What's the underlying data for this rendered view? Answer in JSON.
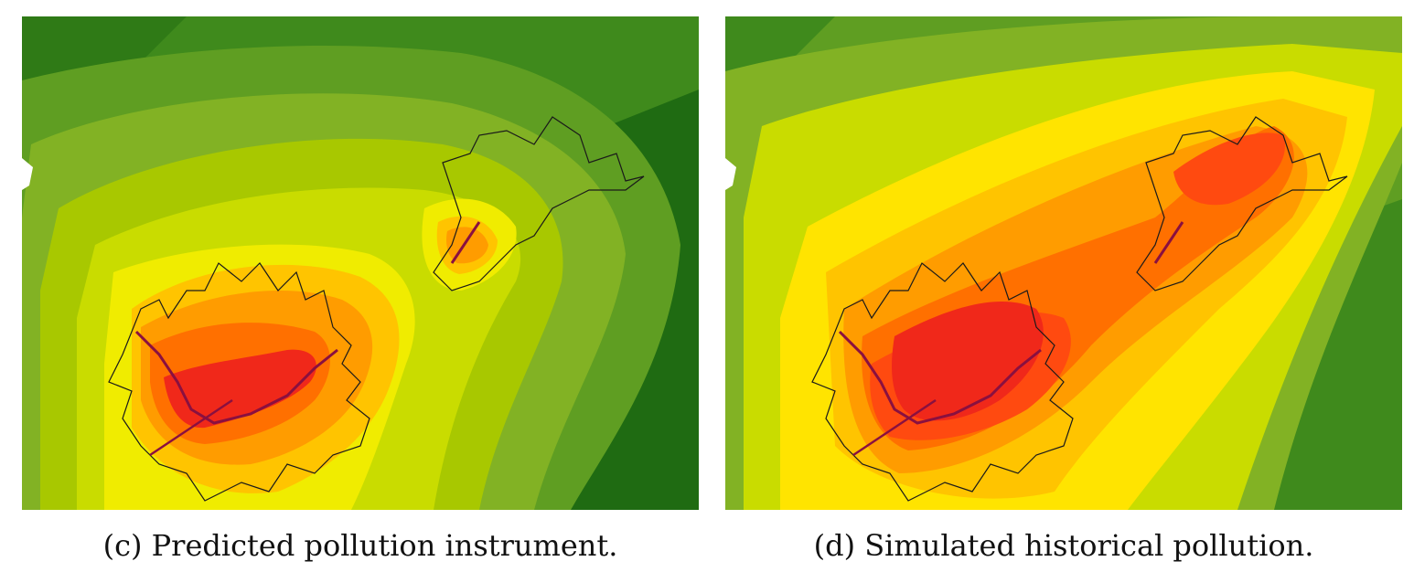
{
  "figures": [
    {
      "label": "(c)",
      "caption": "Predicted pollution instrument."
    },
    {
      "label": "(d)",
      "caption": "Simulated historical pollution."
    }
  ],
  "colors": {
    "darkest_green": "#1f6b12",
    "dark_green": "#3f8a1c",
    "green": "#5f9e22",
    "olive_green": "#82b224",
    "yellow_green": "#a8c800",
    "lime": "#c9dc00",
    "yellow": "#f0ec00",
    "bright_yellow": "#ffe400",
    "light_orange": "#ffc400",
    "orange": "#ff9c00",
    "dark_orange": "#ff7000",
    "red_orange": "#ff4a10",
    "red": "#f0281a",
    "boundary": "#1a1a1a",
    "route": "#8a1040"
  }
}
